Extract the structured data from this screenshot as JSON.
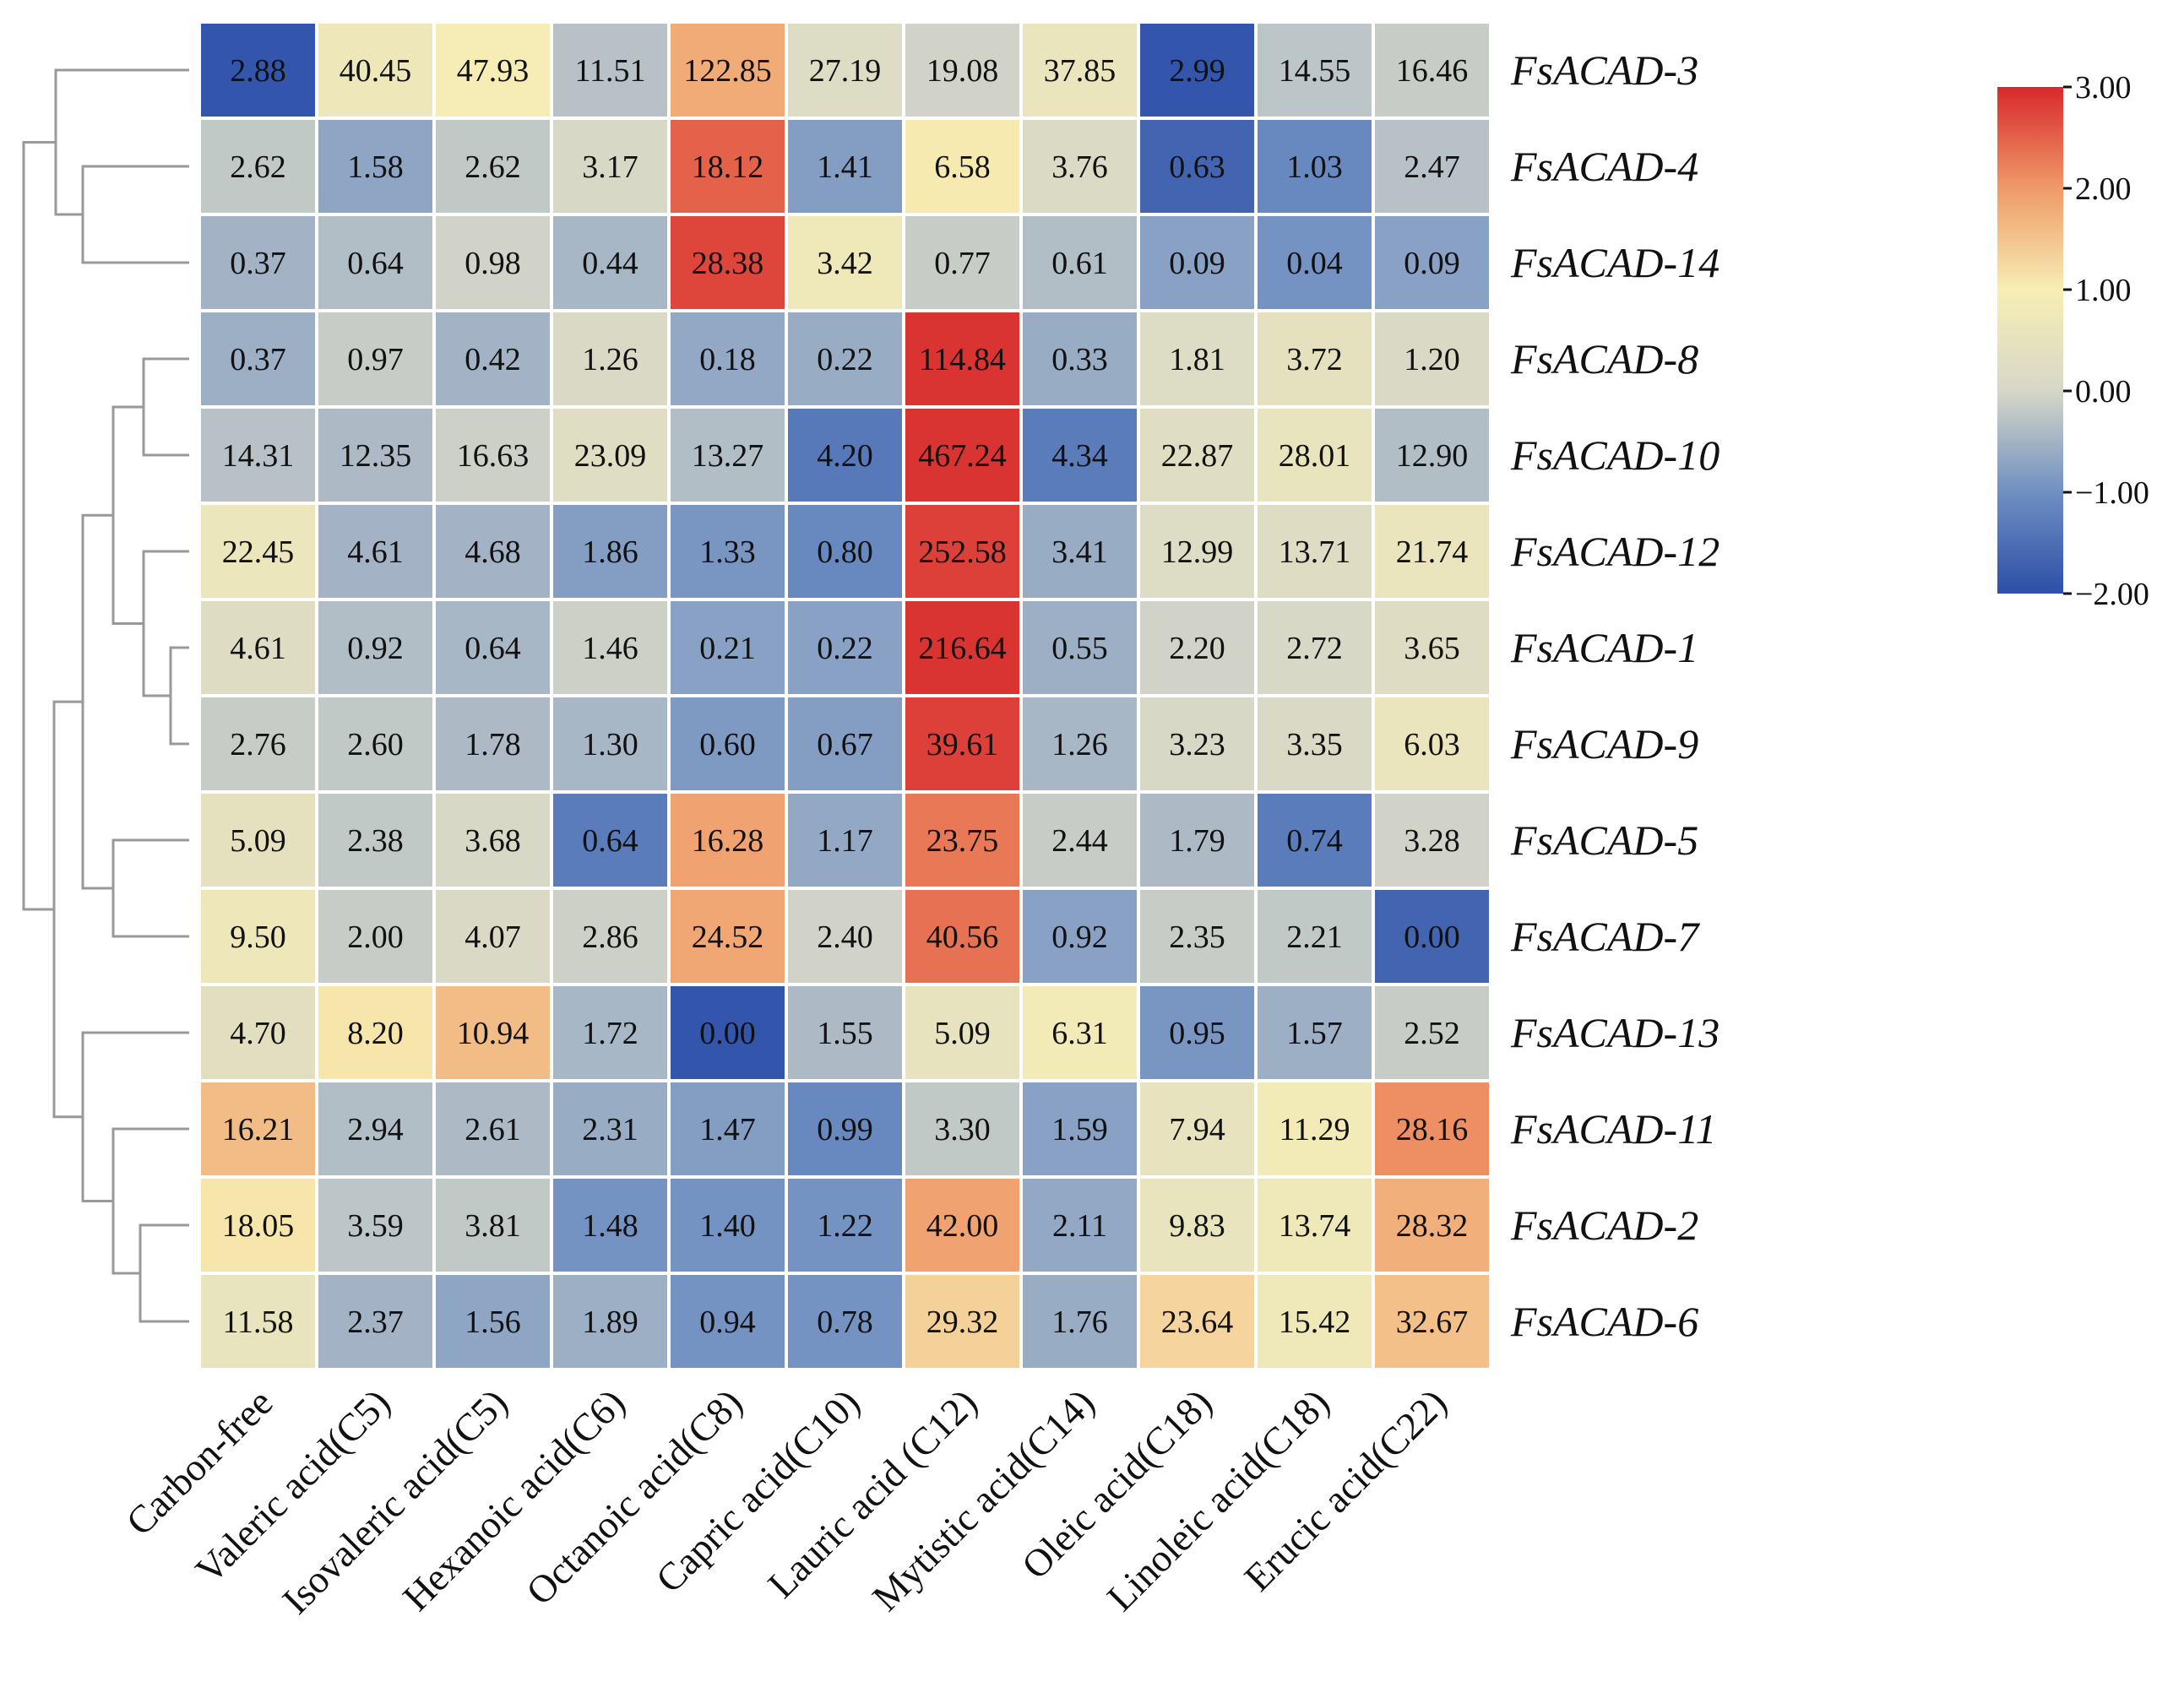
{
  "chart_data": {
    "type": "heatmap",
    "title": "",
    "rows": [
      "FsACAD-3",
      "FsACAD-4",
      "FsACAD-14",
      "FsACAD-8",
      "FsACAD-10",
      "FsACAD-12",
      "FsACAD-1",
      "FsACAD-9",
      "FsACAD-5",
      "FsACAD-7",
      "FsACAD-13",
      "FsACAD-11",
      "FsACAD-2",
      "FsACAD-6"
    ],
    "columns": [
      "Carbon-free",
      "Valeric acid(C5)",
      "Isovaleric acid(C5)",
      "Hexanoic acid(C6)",
      "Octanoic acid(C8)",
      "Capric acid(C10)",
      "Lauric acid (C12)",
      "Mytistic acid(C14)",
      "Oleic acid(C18)",
      "Linoleic acid(C18)",
      "Erucic acid(C22)"
    ],
    "values": [
      [
        "2.88",
        "40.45",
        "47.93",
        "11.51",
        "122.85",
        "27.19",
        "19.08",
        "37.85",
        "2.99",
        "14.55",
        "16.46"
      ],
      [
        "2.62",
        "1.58",
        "2.62",
        "3.17",
        "18.12",
        "1.41",
        "6.58",
        "3.76",
        "0.63",
        "1.03",
        "2.47"
      ],
      [
        "0.37",
        "0.64",
        "0.98",
        "0.44",
        "28.38",
        "3.42",
        "0.77",
        "0.61",
        "0.09",
        "0.04",
        "0.09"
      ],
      [
        "0.37",
        "0.97",
        "0.42",
        "1.26",
        "0.18",
        "0.22",
        "114.84",
        "0.33",
        "1.81",
        "3.72",
        "1.20"
      ],
      [
        "14.31",
        "12.35",
        "16.63",
        "23.09",
        "13.27",
        "4.20",
        "467.24",
        "4.34",
        "22.87",
        "28.01",
        "12.90"
      ],
      [
        "22.45",
        "4.61",
        "4.68",
        "1.86",
        "1.33",
        "0.80",
        "252.58",
        "3.41",
        "12.99",
        "13.71",
        "21.74"
      ],
      [
        "4.61",
        "0.92",
        "0.64",
        "1.46",
        "0.21",
        "0.22",
        "216.64",
        "0.55",
        "2.20",
        "2.72",
        "3.65"
      ],
      [
        "2.76",
        "2.60",
        "1.78",
        "1.30",
        "0.60",
        "0.67",
        "39.61",
        "1.26",
        "3.23",
        "3.35",
        "6.03"
      ],
      [
        "5.09",
        "2.38",
        "3.68",
        "0.64",
        "16.28",
        "1.17",
        "23.75",
        "2.44",
        "1.79",
        "0.74",
        "3.28"
      ],
      [
        "9.50",
        "2.00",
        "4.07",
        "2.86",
        "24.52",
        "2.40",
        "40.56",
        "0.92",
        "2.35",
        "2.21",
        "0.00"
      ],
      [
        "4.70",
        "8.20",
        "10.94",
        "1.72",
        "0.00",
        "1.55",
        "5.09",
        "6.31",
        "0.95",
        "1.57",
        "2.52"
      ],
      [
        "16.21",
        "2.94",
        "2.61",
        "2.31",
        "1.47",
        "0.99",
        "3.30",
        "1.59",
        "7.94",
        "11.29",
        "28.16"
      ],
      [
        "18.05",
        "3.59",
        "3.81",
        "1.48",
        "1.40",
        "1.22",
        "42.00",
        "2.11",
        "9.83",
        "13.74",
        "28.32"
      ],
      [
        "11.58",
        "2.37",
        "1.56",
        "1.89",
        "0.94",
        "0.78",
        "29.32",
        "1.76",
        "23.64",
        "15.42",
        "32.67"
      ]
    ],
    "color_scores": [
      [
        -1.9,
        0.7,
        0.95,
        -0.3,
        1.8,
        0.2,
        -0.05,
        0.6,
        -1.9,
        -0.25,
        -0.15
      ],
      [
        -0.2,
        -0.7,
        -0.2,
        0.05,
        2.5,
        -0.8,
        1.05,
        0.15,
        -1.65,
        -1.1,
        -0.3
      ],
      [
        -0.5,
        -0.35,
        -0.05,
        -0.45,
        2.75,
        0.75,
        -0.15,
        -0.35,
        -0.75,
        -0.95,
        -0.75
      ],
      [
        -0.55,
        -0.15,
        -0.5,
        0.1,
        -0.65,
        -0.6,
        2.9,
        -0.6,
        0.2,
        0.45,
        0.1
      ],
      [
        -0.3,
        -0.4,
        -0.1,
        0.3,
        -0.35,
        -1.35,
        2.9,
        -1.3,
        0.3,
        0.55,
        -0.35
      ],
      [
        0.65,
        -0.5,
        -0.5,
        -0.8,
        -0.9,
        -1.1,
        2.8,
        -0.6,
        0.2,
        0.25,
        0.6
      ],
      [
        0.25,
        -0.35,
        -0.45,
        -0.1,
        -0.75,
        -0.75,
        2.9,
        -0.55,
        -0.05,
        0.05,
        0.25
      ],
      [
        -0.15,
        -0.2,
        -0.4,
        -0.45,
        -0.85,
        -0.8,
        2.8,
        -0.45,
        0.05,
        0.1,
        0.6
      ],
      [
        0.45,
        -0.2,
        0.05,
        -1.3,
        1.9,
        -0.65,
        2.3,
        -0.15,
        -0.4,
        -1.3,
        -0.05
      ],
      [
        0.7,
        -0.15,
        0.1,
        -0.1,
        1.85,
        -0.05,
        2.35,
        -0.75,
        -0.15,
        -0.2,
        -1.65
      ],
      [
        0.35,
        1.1,
        1.6,
        -0.45,
        -1.9,
        -0.4,
        0.5,
        0.85,
        -0.9,
        -0.55,
        -0.15
      ],
      [
        1.6,
        -0.35,
        -0.4,
        -0.6,
        -0.8,
        -1.1,
        -0.2,
        -0.75,
        0.5,
        0.85,
        2.1
      ],
      [
        1.1,
        -0.25,
        -0.2,
        -0.95,
        -0.95,
        -0.95,
        1.9,
        -0.65,
        0.55,
        0.75,
        1.75
      ],
      [
        0.55,
        -0.5,
        -0.7,
        -0.55,
        -0.95,
        -0.95,
        1.35,
        -0.6,
        1.3,
        0.75,
        1.55
      ]
    ],
    "colorbar": {
      "min": -2.0,
      "max": 3.0,
      "ticks": [
        "3.00",
        "2.00",
        "1.00",
        "0.00",
        "−1.00",
        "−2.00"
      ],
      "colors": [
        "#2c4fa8",
        "#6f8fc2",
        "#d6d7c8",
        "#f7eeb4",
        "#ef9a68",
        "#d8292c"
      ]
    },
    "dendrogram_color": "#999999",
    "grid_color": "#ffffff"
  }
}
